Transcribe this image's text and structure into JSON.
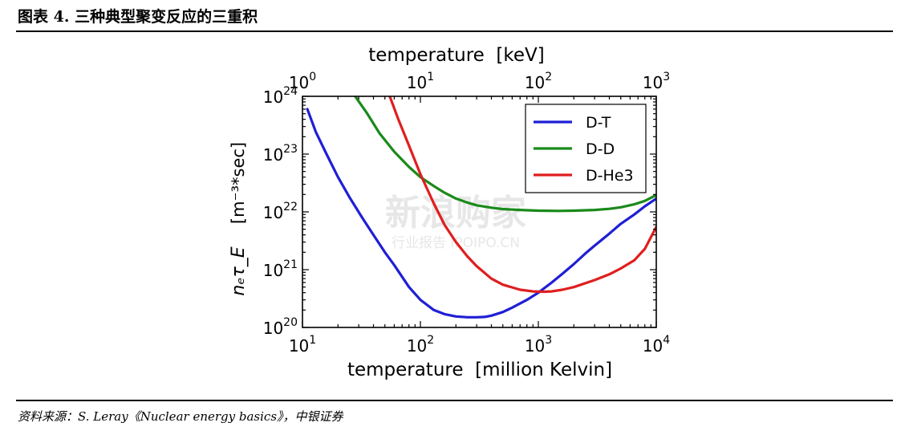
{
  "figure": {
    "title": "图表 4. 三种典型聚变反应的三重积",
    "source": "资料来源：S. Leray《Nuclear energy basics》，中银证券"
  },
  "watermark": {
    "main": "新浪购家",
    "sub": "行业报告 IPOIPO.CN"
  },
  "chart_data": {
    "type": "line",
    "xscale": "log",
    "yscale": "log",
    "xlabel": "temperature  [million Kelvin]",
    "x2label": "temperature  [keV]",
    "ylabel_units": "[m⁻³*sec]",
    "ylabel_symbol": "nₑτ_E",
    "xlim": [
      10,
      10000
    ],
    "x2lim": [
      1,
      1000
    ],
    "ylim": [
      1e+20,
      1e+24
    ],
    "x_ticks": [
      {
        "base": "10",
        "exp": "1",
        "value": 10
      },
      {
        "base": "10",
        "exp": "2",
        "value": 100
      },
      {
        "base": "10",
        "exp": "3",
        "value": 1000
      },
      {
        "base": "10",
        "exp": "4",
        "value": 10000
      }
    ],
    "x2_ticks": [
      {
        "base": "10",
        "exp": "0",
        "value": 1
      },
      {
        "base": "10",
        "exp": "1",
        "value": 10
      },
      {
        "base": "10",
        "exp": "2",
        "value": 100
      },
      {
        "base": "10",
        "exp": "3",
        "value": 1000
      }
    ],
    "y_ticks": [
      {
        "base": "10",
        "exp": "24",
        "value": 1e+24
      },
      {
        "base": "10",
        "exp": "23",
        "value": 1e+23
      },
      {
        "base": "10",
        "exp": "22",
        "value": 1e+22
      },
      {
        "base": "10",
        "exp": "21",
        "value": 1e+21
      },
      {
        "base": "10",
        "exp": "20",
        "value": 1e+20
      }
    ],
    "legend_position": "top-right",
    "series": [
      {
        "name": "D-T",
        "color": "#1f1fd6",
        "x": [
          11,
          13,
          16,
          20,
          25,
          32,
          40,
          50,
          60,
          80,
          100,
          130,
          160,
          200,
          250,
          300,
          350,
          400,
          500,
          600,
          800,
          1000,
          1300,
          1600,
          2000,
          2500,
          3000,
          4000,
          5000,
          6500,
          8000,
          10000
        ],
        "y": [
          6e+23,
          2.4e+23,
          1e+23,
          4e+22,
          1.8e+22,
          8e+21,
          4e+21,
          2e+21,
          1.2e+21,
          5e+20,
          3e+20,
          2e+20,
          1.7e+20,
          1.55e+20,
          1.5e+20,
          1.5e+20,
          1.52e+20,
          1.6e+20,
          1.85e+20,
          2.2e+20,
          3e+20,
          4e+20,
          6e+20,
          8.5e+20,
          1.25e+21,
          1.9e+21,
          2.6e+21,
          4.2e+21,
          6.2e+21,
          9e+21,
          1.25e+22,
          1.7e+22
        ]
      },
      {
        "name": "D-D",
        "color": "#1a8a1a",
        "x": [
          28,
          35,
          45,
          60,
          80,
          100,
          130,
          160,
          200,
          250,
          300,
          400,
          500,
          700,
          1000,
          1500,
          2000,
          3000,
          4000,
          5000,
          6500,
          8000,
          10000
        ],
        "y": [
          1e+24,
          5.2e+23,
          2.3e+23,
          1.1e+23,
          6e+22,
          4e+22,
          2.8e+22,
          2.15e+22,
          1.7e+22,
          1.45e+22,
          1.3e+22,
          1.18e+22,
          1.12e+22,
          1.08e+22,
          1.05e+22,
          1.04e+22,
          1.05e+22,
          1.08e+22,
          1.13e+22,
          1.2e+22,
          1.35e+22,
          1.55e+22,
          1.95e+22
        ]
      },
      {
        "name": "D-He3",
        "color": "#e01e1e",
        "x": [
          55,
          65,
          80,
          100,
          130,
          160,
          200,
          250,
          300,
          400,
          500,
          700,
          900,
          1100,
          1300,
          1600,
          2000,
          3000,
          4000,
          5000,
          6500,
          8000,
          10000
        ],
        "y": [
          1e+24,
          4e+23,
          1.4e+23,
          4.5e+22,
          1.4e+22,
          6e+21,
          3e+21,
          1.7e+21,
          1.15e+21,
          7e+20,
          5.5e+20,
          4.5e+20,
          4.2e+20,
          4.15e+20,
          4.2e+20,
          4.5e+20,
          5e+20,
          6.6e+20,
          8.3e+20,
          1.05e+21,
          1.45e+21,
          2.3e+21,
          5.5e+21
        ]
      }
    ]
  }
}
